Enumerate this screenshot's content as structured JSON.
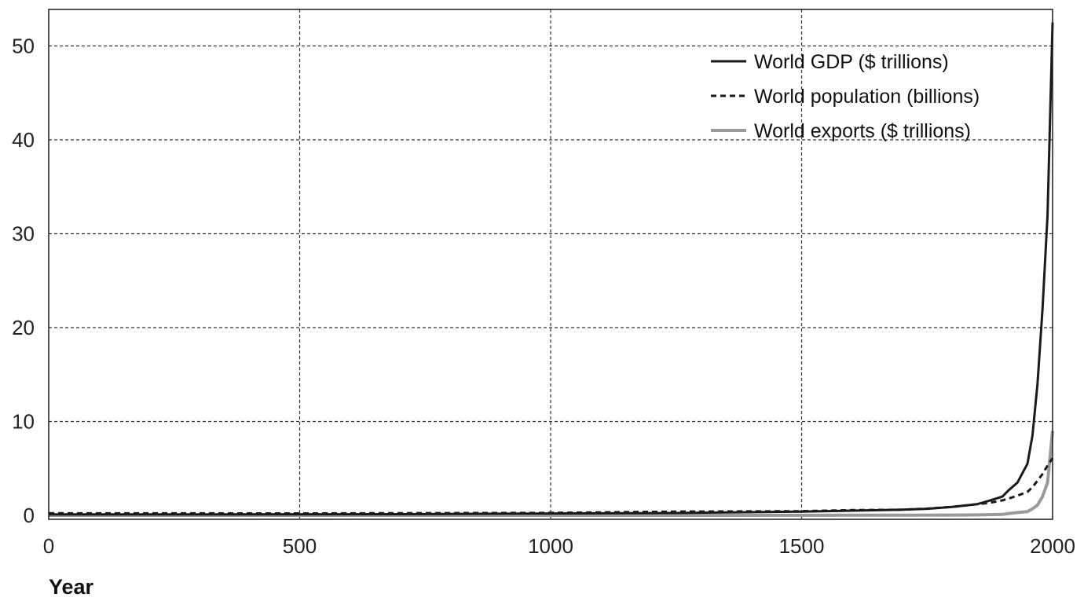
{
  "chart_data": {
    "type": "line",
    "title": "",
    "xlabel": "Year",
    "ylabel": "",
    "xlim": [
      0,
      2000
    ],
    "ylim": [
      0,
      55
    ],
    "xticks": [
      0,
      500,
      1000,
      1500,
      2000
    ],
    "yticks": [
      0,
      10,
      20,
      30,
      40,
      50
    ],
    "grid": true,
    "legend_position": "top-right",
    "series": [
      {
        "name": "World GDP ($ trillions)",
        "style": "solid",
        "color": "#1a1a1a",
        "x": [
          0,
          250,
          500,
          750,
          1000,
          1250,
          1500,
          1600,
          1700,
          1750,
          1800,
          1850,
          1870,
          1900,
          1913,
          1930,
          1950,
          1960,
          1970,
          1980,
          1990,
          2000
        ],
        "y": [
          0.1,
          0.1,
          0.12,
          0.13,
          0.2,
          0.25,
          0.4,
          0.5,
          0.6,
          0.7,
          0.9,
          1.2,
          1.5,
          2.0,
          2.7,
          3.5,
          5.5,
          8.5,
          14,
          22,
          32,
          52.5
        ]
      },
      {
        "name": "World population (billions)",
        "style": "dashed",
        "color": "#1a1a1a",
        "x": [
          0,
          500,
          1000,
          1250,
          1500,
          1600,
          1700,
          1750,
          1800,
          1850,
          1870,
          1900,
          1913,
          1930,
          1950,
          1960,
          1970,
          1980,
          1990,
          2000
        ],
        "y": [
          0.23,
          0.21,
          0.27,
          0.4,
          0.44,
          0.56,
          0.6,
          0.72,
          0.9,
          1.2,
          1.3,
          1.6,
          1.8,
          2.1,
          2.5,
          3.0,
          3.7,
          4.4,
          5.3,
          6.1
        ]
      },
      {
        "name": "World exports ($ trillions)",
        "style": "solid",
        "color": "#9a9a9a",
        "x": [
          0,
          500,
          1000,
          1500,
          1700,
          1800,
          1850,
          1900,
          1913,
          1930,
          1950,
          1960,
          1970,
          1980,
          1990,
          2000
        ],
        "y": [
          0,
          0,
          0,
          0.01,
          0.02,
          0.03,
          0.05,
          0.1,
          0.2,
          0.3,
          0.4,
          0.7,
          1.1,
          2.0,
          3.5,
          9.0
        ]
      }
    ]
  }
}
